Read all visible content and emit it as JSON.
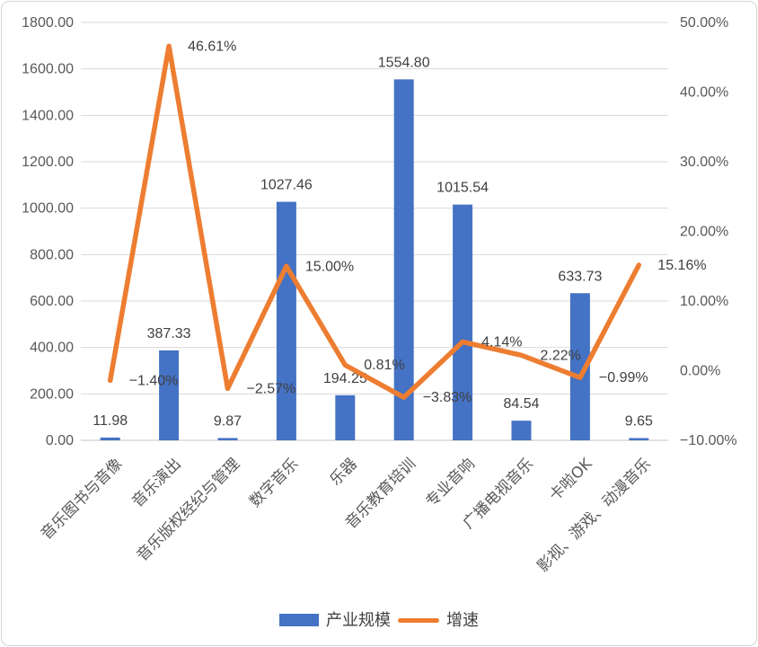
{
  "chart_data": {
    "type": "bar",
    "subtype": "combo-bar-line-dual-axis",
    "categories": [
      "音乐图书与音像",
      "音乐演出",
      "音乐版权经纪与管理",
      "数字音乐",
      "乐器",
      "音乐教育培训",
      "专业音响",
      "广播电视音乐",
      "卡啦OK",
      "影视、游戏、动漫音乐"
    ],
    "series": [
      {
        "name": "产业规模",
        "type": "bar",
        "axis": "left",
        "color": "#4472C4",
        "values": [
          11.98,
          387.33,
          9.87,
          1027.46,
          194.25,
          1554.8,
          1015.54,
          84.54,
          633.73,
          9.65
        ],
        "labels": [
          "11.98",
          "387.33",
          "9.87",
          "1027.46",
          "194.25",
          "1554.80",
          "1015.54",
          "84.54",
          "633.73",
          "9.65"
        ]
      },
      {
        "name": "增速",
        "type": "line",
        "axis": "right",
        "color": "#ED7D31",
        "values": [
          -1.4,
          46.61,
          -2.57,
          15.0,
          0.81,
          -3.83,
          4.14,
          2.22,
          -0.99,
          15.16
        ],
        "labels": [
          "−1.40%",
          "46.61%",
          "−2.57%",
          "15.00%",
          "0.81%",
          "−3.83%",
          "4.14%",
          "2.22%",
          "−0.99%",
          "15.16%"
        ]
      }
    ],
    "left_axis": {
      "min": 0,
      "max": 1800,
      "step": 200,
      "tick_labels": [
        "0.00",
        "200.00",
        "400.00",
        "600.00",
        "800.00",
        "1000.00",
        "1200.00",
        "1400.00",
        "1600.00",
        "1800.00"
      ]
    },
    "right_axis": {
      "min": -10,
      "max": 50,
      "step": 10,
      "tick_labels": [
        "−10.00%",
        "0.00%",
        "10.00%",
        "20.00%",
        "30.00%",
        "40.00%",
        "50.00%"
      ]
    },
    "grid": true,
    "legend_position": "bottom",
    "title": ""
  },
  "colors": {
    "bar": "#4472C4",
    "line": "#ED7D31",
    "gridline": "#d9d9d9",
    "tick_text": "#595959",
    "data_label_text": "#404040",
    "card_border": "#d5d5d5",
    "background": "#ffffff"
  }
}
